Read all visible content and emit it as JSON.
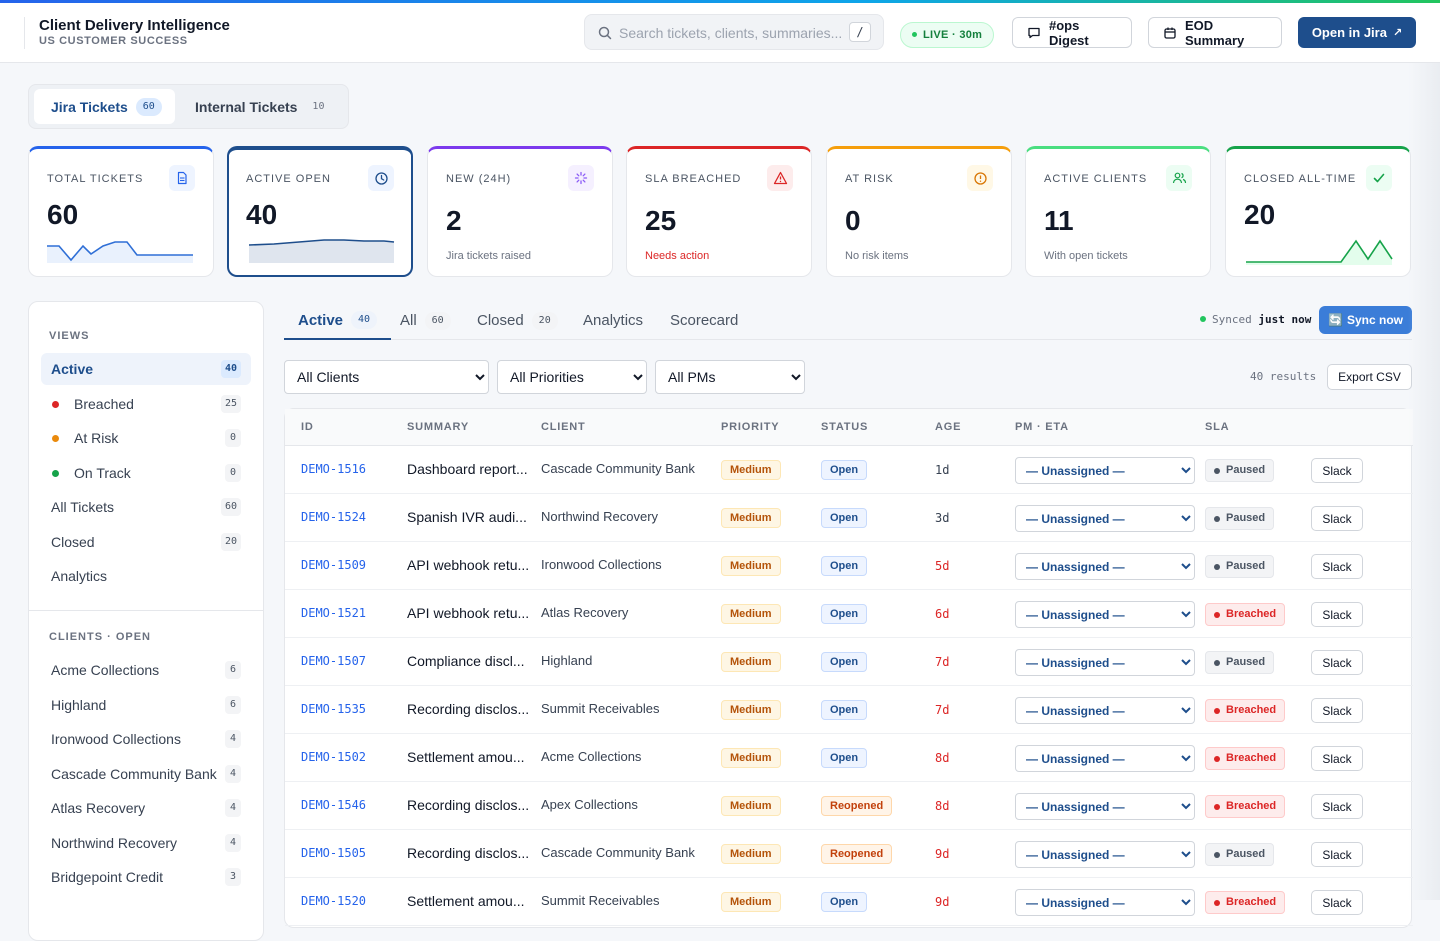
{
  "header": {
    "title": "Client Delivery Intelligence",
    "subtitle": "US CUSTOMER SUCCESS",
    "search_placeholder": "Search tickets, clients, summaries...",
    "search_shortcut": "/",
    "live_label": "LIVE · 30m",
    "ops_digest_label": "#ops Digest",
    "eod_label": "EOD Summary",
    "open_jira_label": "Open in Jira"
  },
  "source_tabs": [
    {
      "label": "Jira Tickets",
      "count": "60"
    },
    {
      "label": "Internal Tickets",
      "count": "10"
    }
  ],
  "metrics": [
    {
      "label": "TOTAL TICKETS",
      "value": "60",
      "sub": "",
      "color": "#2563eb",
      "icon": "document-icon"
    },
    {
      "label": "ACTIVE OPEN",
      "value": "40",
      "sub": "",
      "color": "#1e4e8c",
      "icon": "clock-icon"
    },
    {
      "label": "NEW (24H)",
      "value": "2",
      "sub": "Jira tickets raised",
      "color": "#7c3aed",
      "icon": "spinner-icon"
    },
    {
      "label": "SLA BREACHED",
      "value": "25",
      "sub": "Needs action",
      "color": "#dc2626",
      "icon": "warning-icon"
    },
    {
      "label": "AT RISK",
      "value": "0",
      "sub": "No risk items",
      "color": "#f59e0b",
      "icon": "alert-circle-icon"
    },
    {
      "label": "ACTIVE CLIENTS",
      "value": "11",
      "sub": "With open tickets",
      "color": "#22c55e",
      "icon": "users-icon"
    },
    {
      "label": "CLOSED ALL-TIME",
      "value": "20",
      "sub": "",
      "color": "#16a34a",
      "icon": "check-icon"
    }
  ],
  "sidebar": {
    "views_heading": "VIEWS",
    "views": [
      {
        "label": "Active",
        "count": "40",
        "dot": ""
      },
      {
        "label": "Breached",
        "count": "25",
        "dot": "#dc2626"
      },
      {
        "label": "At Risk",
        "count": "0",
        "dot": "#ea8a0c"
      },
      {
        "label": "On Track",
        "count": "0",
        "dot": "#16a34a"
      },
      {
        "label": "All Tickets",
        "count": "60",
        "dot": ""
      },
      {
        "label": "Closed",
        "count": "20",
        "dot": ""
      },
      {
        "label": "Analytics",
        "count": "",
        "dot": ""
      }
    ],
    "clients_heading": "CLIENTS · OPEN",
    "clients": [
      {
        "label": "Acme Collections",
        "count": "6"
      },
      {
        "label": "Highland",
        "count": "6"
      },
      {
        "label": "Ironwood Collections",
        "count": "4"
      },
      {
        "label": "Cascade Community Bank",
        "count": "4"
      },
      {
        "label": "Atlas Recovery",
        "count": "4"
      },
      {
        "label": "Northwind Recovery",
        "count": "4"
      },
      {
        "label": "Bridgepoint Credit",
        "count": "3"
      }
    ]
  },
  "main_tabs": [
    {
      "label": "Active",
      "count": "40"
    },
    {
      "label": "All",
      "count": "60"
    },
    {
      "label": "Closed",
      "count": "20"
    },
    {
      "label": "Analytics",
      "count": ""
    },
    {
      "label": "Scorecard",
      "count": ""
    }
  ],
  "sync": {
    "prefix": "Synced",
    "when": "just now",
    "button": "Sync now"
  },
  "filters": {
    "client": "All Clients",
    "priority": "All Priorities",
    "pm": "All PMs"
  },
  "results_label": "40 results",
  "export_label": "Export CSV",
  "table": {
    "headers": [
      "ID",
      "SUMMARY",
      "CLIENT",
      "PRIORITY",
      "STATUS",
      "AGE",
      "PM · ETA",
      "SLA"
    ],
    "pm_default": "— Unassigned —",
    "slack_label": "Slack",
    "rows": [
      {
        "id": "DEMO-1516",
        "summary": "Dashboard report...",
        "client": "Cascade Community Bank",
        "priority": "Medium",
        "status": "Open",
        "age": "1d",
        "age_red": false,
        "sla": "Paused"
      },
      {
        "id": "DEMO-1524",
        "summary": "Spanish IVR audi...",
        "client": "Northwind Recovery",
        "priority": "Medium",
        "status": "Open",
        "age": "3d",
        "age_red": false,
        "sla": "Paused"
      },
      {
        "id": "DEMO-1509",
        "summary": "API webhook retu...",
        "client": "Ironwood Collections",
        "priority": "Medium",
        "status": "Open",
        "age": "5d",
        "age_red": true,
        "sla": "Paused"
      },
      {
        "id": "DEMO-1521",
        "summary": "API webhook retu...",
        "client": "Atlas Recovery",
        "priority": "Medium",
        "status": "Open",
        "age": "6d",
        "age_red": true,
        "sla": "Breached"
      },
      {
        "id": "DEMO-1507",
        "summary": "Compliance discl...",
        "client": "Highland",
        "priority": "Medium",
        "status": "Open",
        "age": "7d",
        "age_red": true,
        "sla": "Paused"
      },
      {
        "id": "DEMO-1535",
        "summary": "Recording disclos...",
        "client": "Summit Receivables",
        "priority": "Medium",
        "status": "Open",
        "age": "7d",
        "age_red": true,
        "sla": "Breached"
      },
      {
        "id": "DEMO-1502",
        "summary": "Settlement amou...",
        "client": "Acme Collections",
        "priority": "Medium",
        "status": "Open",
        "age": "8d",
        "age_red": true,
        "sla": "Breached"
      },
      {
        "id": "DEMO-1546",
        "summary": "Recording disclos...",
        "client": "Apex Collections",
        "priority": "Medium",
        "status": "Reopened",
        "age": "8d",
        "age_red": true,
        "sla": "Breached"
      },
      {
        "id": "DEMO-1505",
        "summary": "Recording disclos...",
        "client": "Cascade Community Bank",
        "priority": "Medium",
        "status": "Reopened",
        "age": "9d",
        "age_red": true,
        "sla": "Paused"
      },
      {
        "id": "DEMO-1520",
        "summary": "Settlement amou...",
        "client": "Summit Receivables",
        "priority": "Medium",
        "status": "Open",
        "age": "9d",
        "age_red": true,
        "sla": "Breached"
      }
    ]
  }
}
